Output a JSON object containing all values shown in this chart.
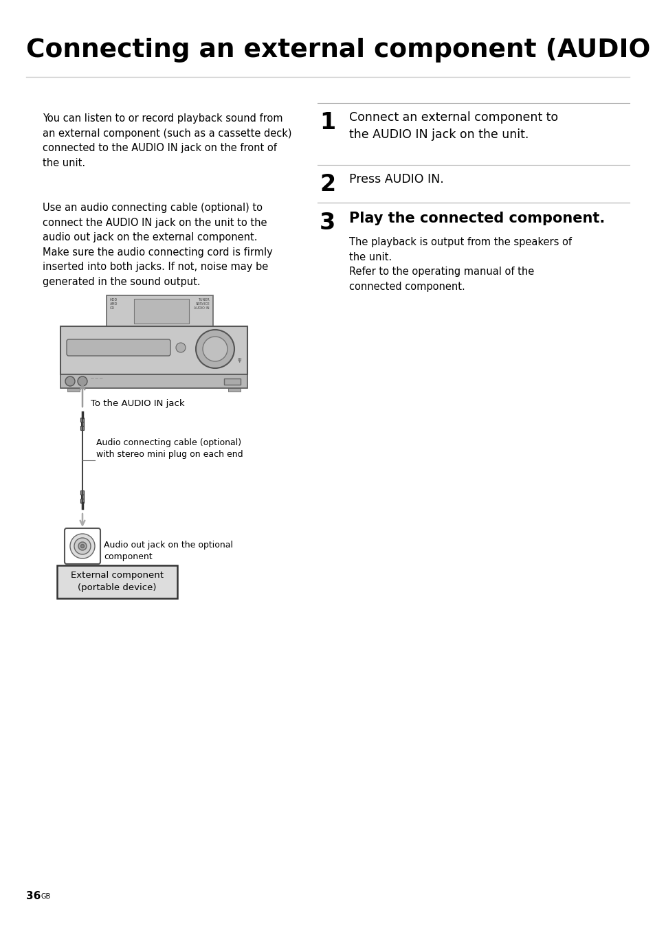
{
  "title": "Connecting an external component (AUDIO IN)",
  "bg_color": "#ffffff",
  "left_para1": "You can listen to or record playback sound from\nan external component (such as a cassette deck)\nconnected to the AUDIO IN jack on the front of\nthe unit.",
  "left_para2": "Use an audio connecting cable (optional) to\nconnect the AUDIO IN jack on the unit to the\naudio out jack on the external component.\nMake sure the audio connecting cord is firmly\ninserted into both jacks. If not, noise may be\ngenerated in the sound output.",
  "step1_num": "1",
  "step1_text": "Connect an external component to\nthe AUDIO IN jack on the unit.",
  "step2_num": "2",
  "step2_text": "Press AUDIO IN.",
  "step3_num": "3",
  "step3_head": "Play the connected component.",
  "step3_body": "The playback is output from the speakers of\nthe unit.\nRefer to the operating manual of the\nconnected component.",
  "label_audio_in": "To the AUDIO IN jack",
  "label_cable": "Audio connecting cable (optional)\nwith stereo mini plug on each end",
  "label_jack": "Audio out jack on the optional\ncomponent",
  "label_device": "External component\n(portable device)",
  "page_num": "36",
  "page_sup": "GB"
}
